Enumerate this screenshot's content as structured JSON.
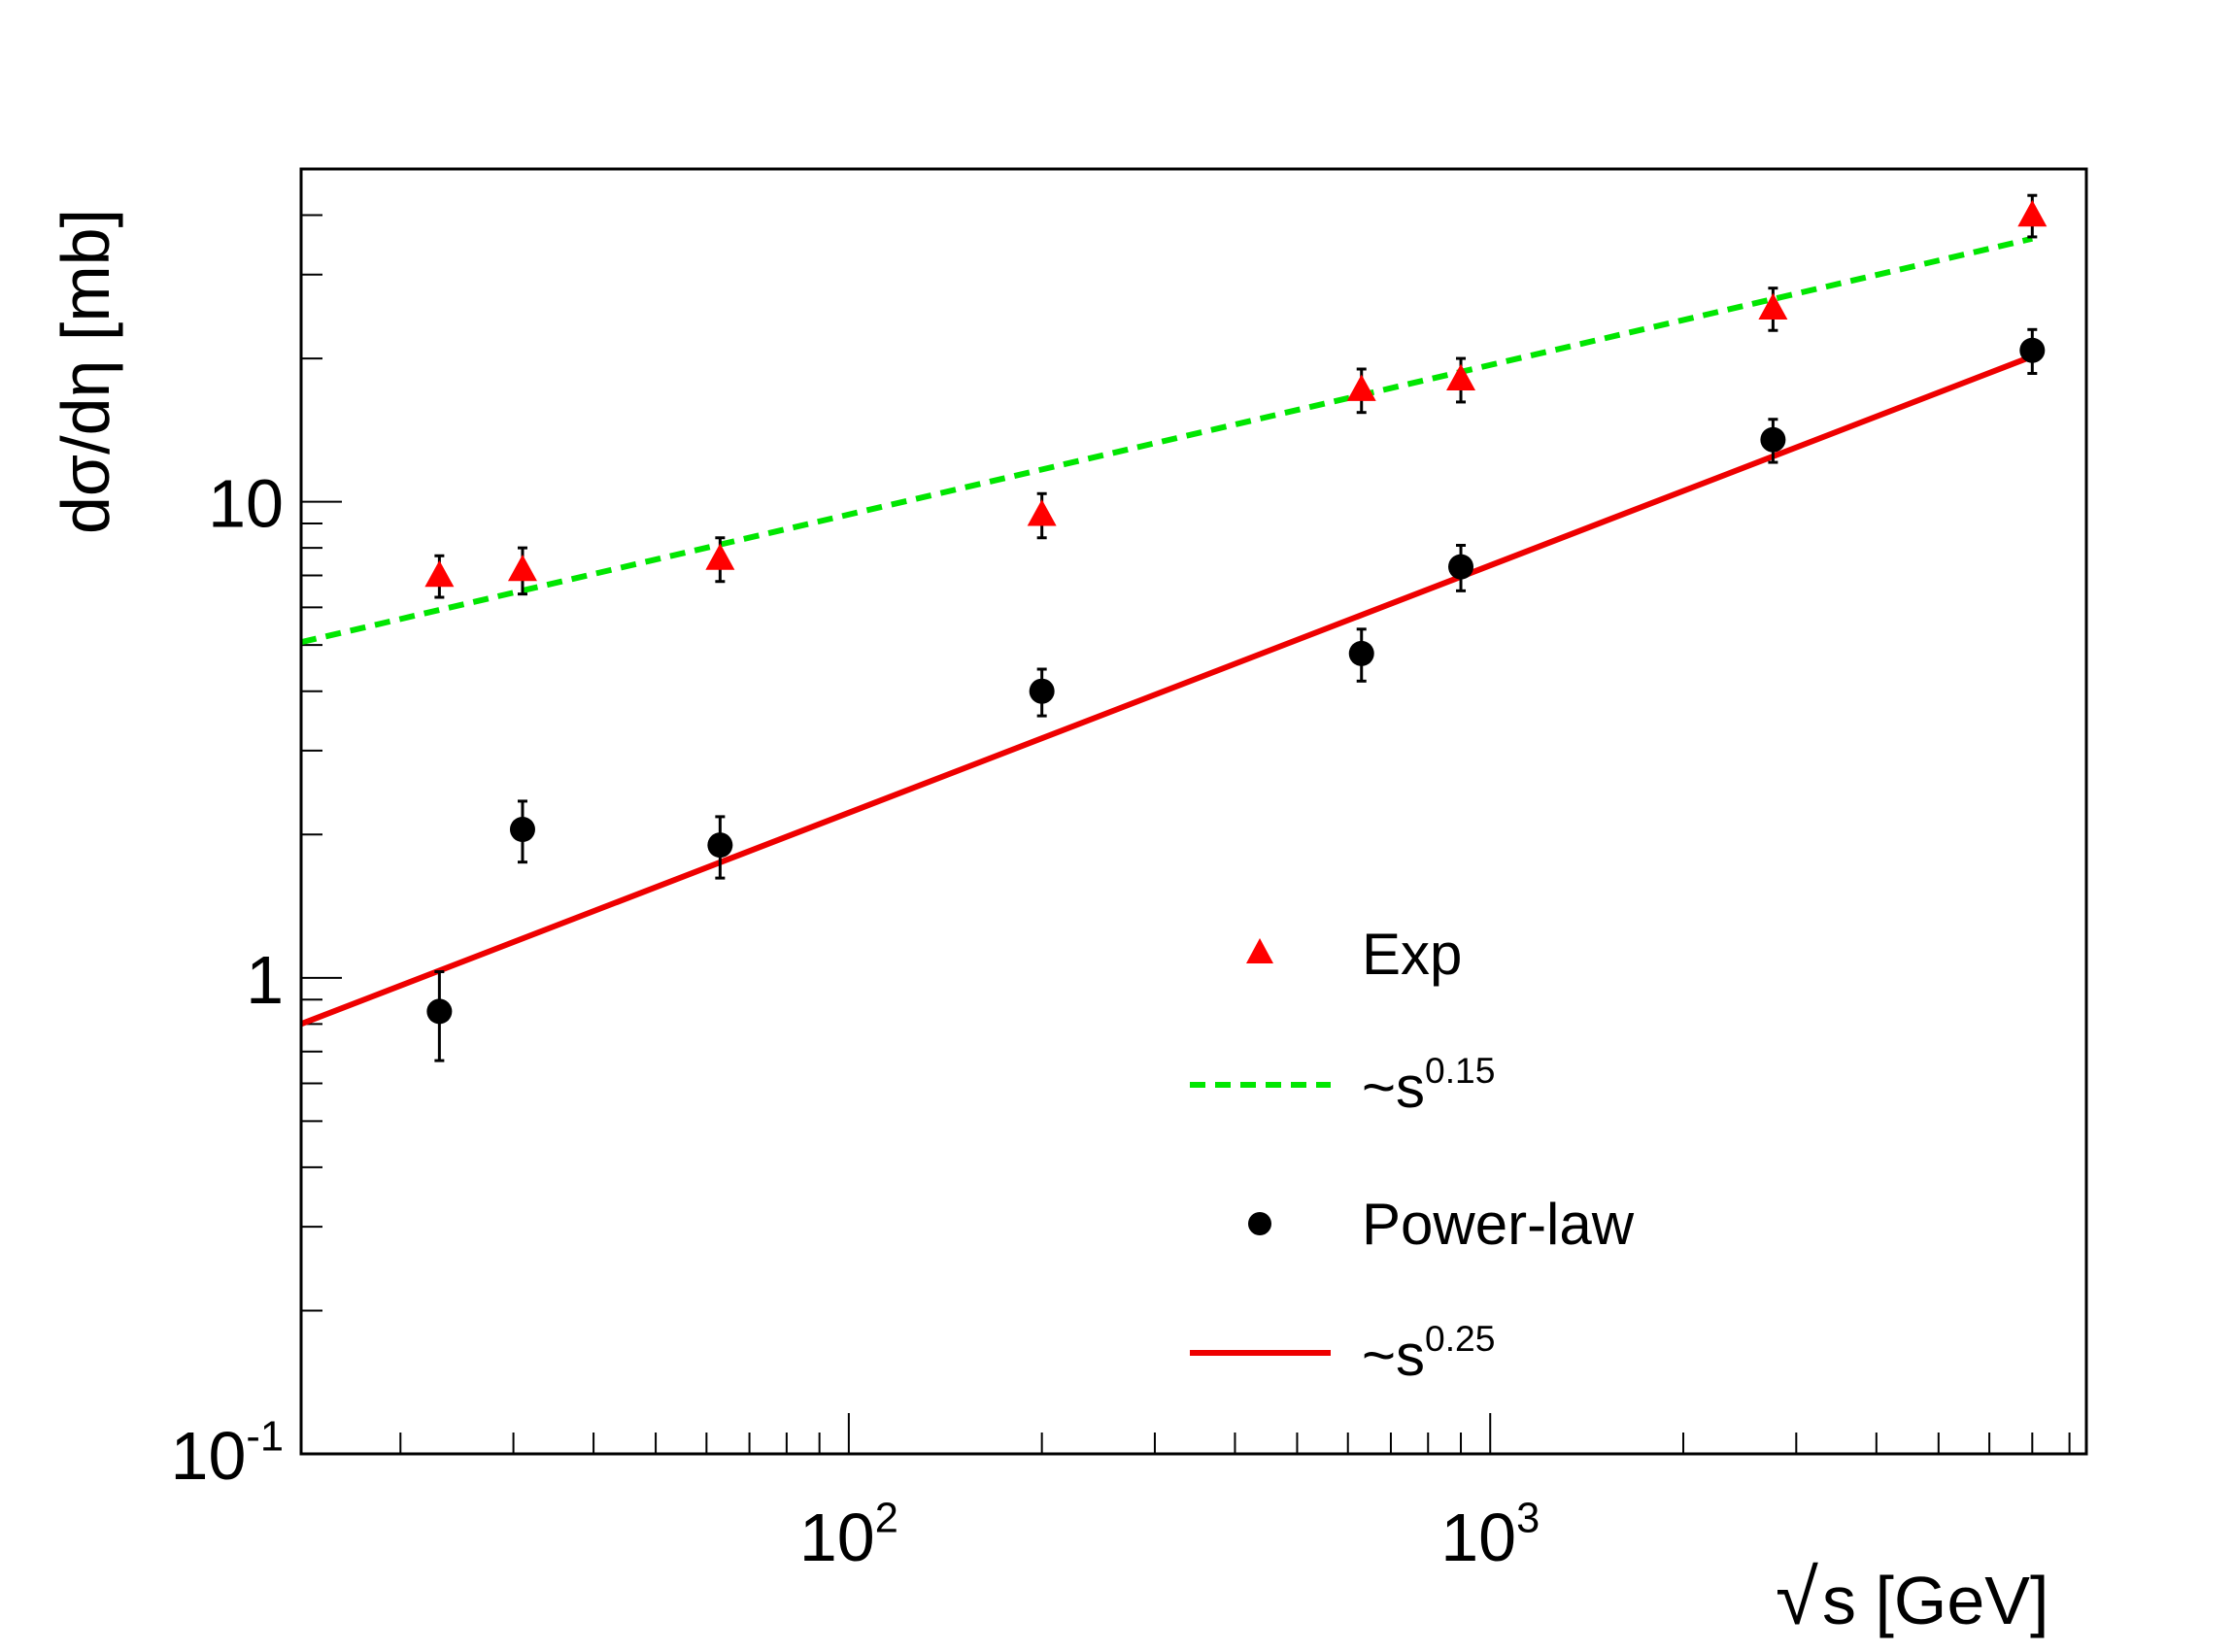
{
  "chart_data": {
    "type": "scatter",
    "title": "",
    "xlabel": "s [GeV]",
    "xlabel_radical": "√",
    "ylabel": "dσ/dη [mb]",
    "xscale": "log",
    "yscale": "log",
    "xlim": [
      14,
      8500
    ],
    "ylim": [
      0.1,
      50
    ],
    "x_tick_labels": [
      {
        "value": 100,
        "base": "10",
        "exp": "2"
      },
      {
        "value": 1000,
        "base": "10",
        "exp": "3"
      }
    ],
    "y_tick_labels": [
      {
        "value": 0.1,
        "base": "10",
        "exp": "-1"
      },
      {
        "value": 1,
        "base": "1",
        "exp": ""
      },
      {
        "value": 10,
        "base": "10",
        "exp": ""
      }
    ],
    "legend_position": "lower-right inside",
    "series": [
      {
        "name": "Exp",
        "kind": "points",
        "marker": "triangle",
        "color": "#ff0000",
        "x": [
          23,
          31,
          63,
          200,
          630,
          900,
          2760,
          7000
        ],
        "y": [
          7.0,
          7.2,
          7.6,
          9.4,
          17.2,
          18.1,
          25.5,
          40.0
        ],
        "err": [
          0.7,
          0.8,
          0.8,
          1.0,
          1.8,
          1.9,
          2.6,
          4.0
        ]
      },
      {
        "name": "~s",
        "exp": "0.15",
        "kind": "line",
        "style": "dashed",
        "color": "#00e600",
        "x": [
          14,
          7000
        ],
        "y": [
          5.07,
          35.7
        ]
      },
      {
        "name": "Power-law",
        "kind": "points",
        "marker": "circle",
        "color": "#000000",
        "x": [
          23,
          31,
          63,
          200,
          630,
          900,
          2760,
          7000
        ],
        "y": [
          0.85,
          2.05,
          1.9,
          4.0,
          4.8,
          7.3,
          13.5,
          20.8
        ],
        "err": [
          0.18,
          0.3,
          0.28,
          0.45,
          0.6,
          0.8,
          1.4,
          2.2
        ]
      },
      {
        "name": "~s",
        "exp": "0.25",
        "kind": "line",
        "style": "solid",
        "color": "#ee0000",
        "x": [
          14,
          7000
        ],
        "y": [
          0.8,
          20.2
        ]
      }
    ]
  }
}
